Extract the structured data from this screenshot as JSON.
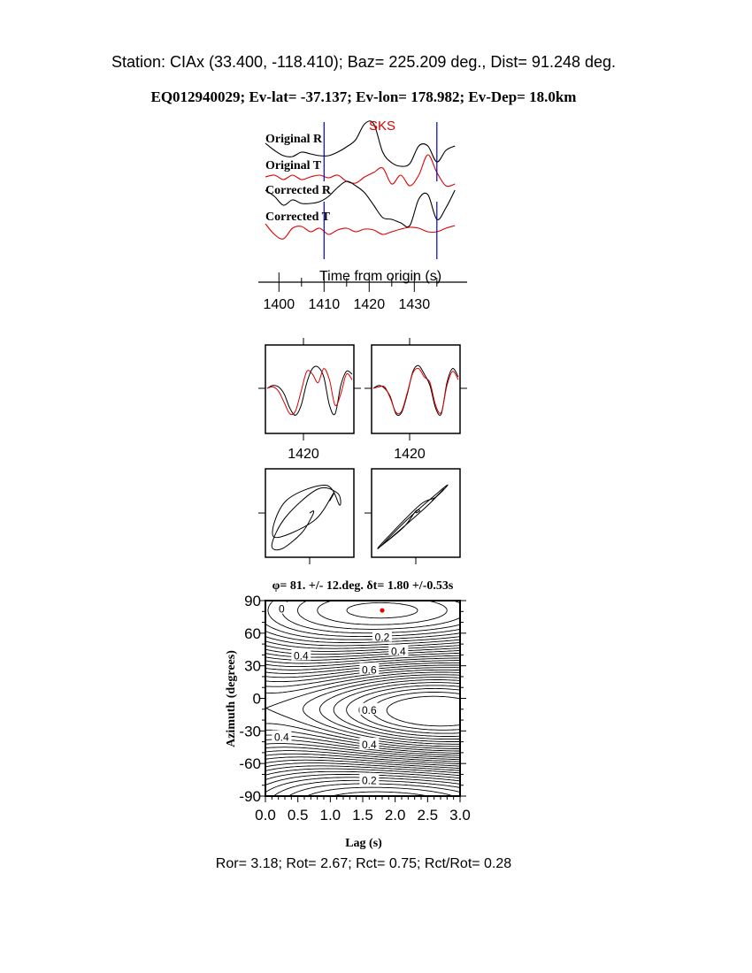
{
  "header": {
    "station_line": "Station: CIAx (33.400, -118.410); Baz=  225.209 deg., Dist=   91.248 deg.",
    "event_line": "EQ012940029; Ev-lat= -37.137; Ev-lon= 178.982; Ev-Dep= 18.0km"
  },
  "footer": {
    "ratios": "Ror= 3.18; Rot= 2.67; Rct= 0.75; Rct/Rot= 0.28"
  },
  "colors": {
    "black_trace": "#000000",
    "red_trace": "#dd0000",
    "window_marker": "#0000cc",
    "phase_label": "#dd0000",
    "best_fit_dot": "#ee0000"
  },
  "chart_data": [
    {
      "type": "line",
      "panel": "seismograms",
      "xlabel": "Time from origin (s)",
      "xlim": [
        1397,
        1440
      ],
      "xticks": [
        "1400",
        "1410",
        "1420",
        "1430"
      ],
      "phase_label": "SKS",
      "window_markers": [
        1410,
        1435
      ],
      "time": [
        1397,
        1399,
        1401,
        1403,
        1405,
        1407,
        1409,
        1411,
        1413,
        1415,
        1417,
        1419,
        1421,
        1423,
        1425,
        1427,
        1429,
        1431,
        1433,
        1435,
        1437,
        1439
      ],
      "series": [
        {
          "name": "Original R",
          "color": "#000000",
          "values": [
            0.15,
            -0.25,
            -0.55,
            -0.6,
            -0.35,
            -0.45,
            -0.55,
            -0.55,
            -0.35,
            -0.05,
            0.35,
            1.25,
            1.25,
            -0.35,
            -0.95,
            -1.15,
            -1.0,
            0,
            0,
            -0.9,
            -0.25,
            0.0
          ]
        },
        {
          "name": "Original T",
          "color": "#dd0000",
          "values": [
            0,
            0.1,
            -0.15,
            0.1,
            -0.15,
            0,
            0.1,
            -0.05,
            0.1,
            -0.25,
            -0.35,
            0,
            0.25,
            0.5,
            -0.4,
            0.1,
            -0.5,
            0.1,
            1.25,
            0.25,
            -0.5,
            -0.4
          ]
        },
        {
          "name": "Corrected R",
          "color": "#000000",
          "values": [
            0.5,
            0.15,
            -0.35,
            -0.05,
            -0.25,
            -0.25,
            -0.15,
            0.15,
            0.65,
            1.0,
            0.75,
            0.35,
            -0.35,
            -1.05,
            -1.15,
            -1.35,
            -1.5,
            0,
            0.25,
            -1.15,
            -0.5,
            0.5
          ]
        },
        {
          "name": "Corrected T",
          "color": "#dd0000",
          "values": [
            0.35,
            -0.25,
            -0.5,
            0.1,
            0.2,
            -0.1,
            0.1,
            -0.25,
            0,
            0.1,
            -0.1,
            0.05,
            0,
            -0.25,
            -0.1,
            0.05,
            0.15,
            0.1,
            -0.1,
            -0.1,
            0.1,
            0.25
          ]
        }
      ]
    },
    {
      "type": "line",
      "panel": "original-window",
      "xtick": "1420",
      "series": [
        {
          "color": "#000000",
          "values": [
            0,
            0.1,
            0.05,
            -0.2,
            -0.7,
            -0.95,
            -0.6,
            0.2,
            0.7,
            0.75,
            0.4,
            -0.6,
            -0.9,
            0.1,
            0.6,
            0.5
          ]
        },
        {
          "color": "#dd0000",
          "values": [
            0,
            0.05,
            -0.1,
            -0.5,
            -0.9,
            -0.8,
            -0.1,
            0.6,
            0.5,
            0.2,
            0.7,
            0.3,
            -0.6,
            -0.2,
            0.5,
            0.3
          ]
        }
      ]
    },
    {
      "type": "line",
      "panel": "corrected-window",
      "xtick": "1420",
      "series": [
        {
          "color": "#000000",
          "values": [
            0,
            0.1,
            0,
            -0.3,
            -0.9,
            -0.85,
            -0.2,
            0.6,
            0.8,
            0.5,
            0.1,
            -0.7,
            -0.9,
            0.2,
            0.7,
            0.4
          ]
        },
        {
          "color": "#dd0000",
          "values": [
            0,
            0.05,
            0.05,
            -0.35,
            -0.85,
            -0.8,
            -0.15,
            0.55,
            0.7,
            0.4,
            0.2,
            -0.6,
            -0.85,
            0.1,
            0.6,
            0.3
          ]
        }
      ]
    },
    {
      "type": "heatmap",
      "panel": "misfit-contours",
      "title": "φ= 81. +/- 12.deg. δt= 1.80 +/-0.53s",
      "xlabel": "Lag (s)",
      "ylabel": "Azimuth (degrees)",
      "xlim": [
        0,
        3
      ],
      "ylim": [
        -90,
        90
      ],
      "xticks": [
        "0.0",
        "0.5",
        "1.0",
        "1.5",
        "2.0",
        "2.5",
        "3.0"
      ],
      "yticks": [
        "90",
        "60",
        "30",
        "0",
        "-30",
        "-60",
        "-90"
      ],
      "best_fit": {
        "lag": 1.8,
        "azimuth": 81
      },
      "contour_labels": [
        {
          "text": "0",
          "lag": 0.25,
          "azimuth": 83
        },
        {
          "text": "0.2",
          "lag": 1.8,
          "azimuth": 57
        },
        {
          "text": "0.4",
          "lag": 0.55,
          "azimuth": 40
        },
        {
          "text": "0.4",
          "lag": 2.05,
          "azimuth": 44
        },
        {
          "text": "0.6",
          "lag": 1.6,
          "azimuth": 27
        },
        {
          "text": "0.6",
          "lag": 1.6,
          "azimuth": -10
        },
        {
          "text": "0.4",
          "lag": 0.25,
          "azimuth": -35
        },
        {
          "text": "0.4",
          "lag": 1.6,
          "azimuth": -42
        },
        {
          "text": "0.2",
          "lag": 1.6,
          "azimuth": -75
        }
      ]
    }
  ]
}
